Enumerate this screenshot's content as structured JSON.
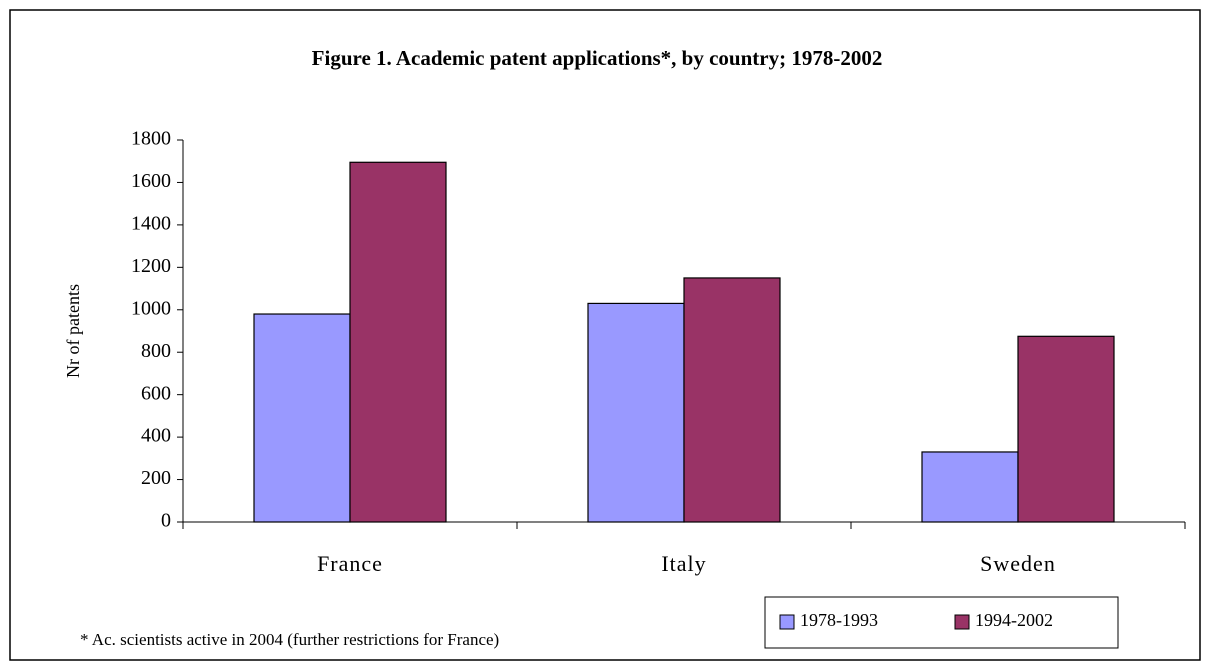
{
  "chart_data": {
    "type": "bar",
    "title": "Figure 1. Academic patent applications*, by country; 1978-2002",
    "y_label": "Nr of patents",
    "footnote": "* Ac. scientists active in 2004 (further restrictions for France)",
    "categories": [
      "France",
      "Italy",
      "Sweden"
    ],
    "series": [
      {
        "name": "1978-1993",
        "color": "#9999ff",
        "values": [
          980,
          1030,
          330
        ]
      },
      {
        "name": "1994-2002",
        "color": "#993366",
        "values": [
          1695,
          1150,
          875
        ]
      }
    ],
    "ylim": [
      0,
      1800
    ],
    "yticks": [
      0,
      200,
      400,
      600,
      800,
      1000,
      1200,
      1400,
      1600,
      1800
    ],
    "grid": false,
    "legend": "bottom-right"
  }
}
